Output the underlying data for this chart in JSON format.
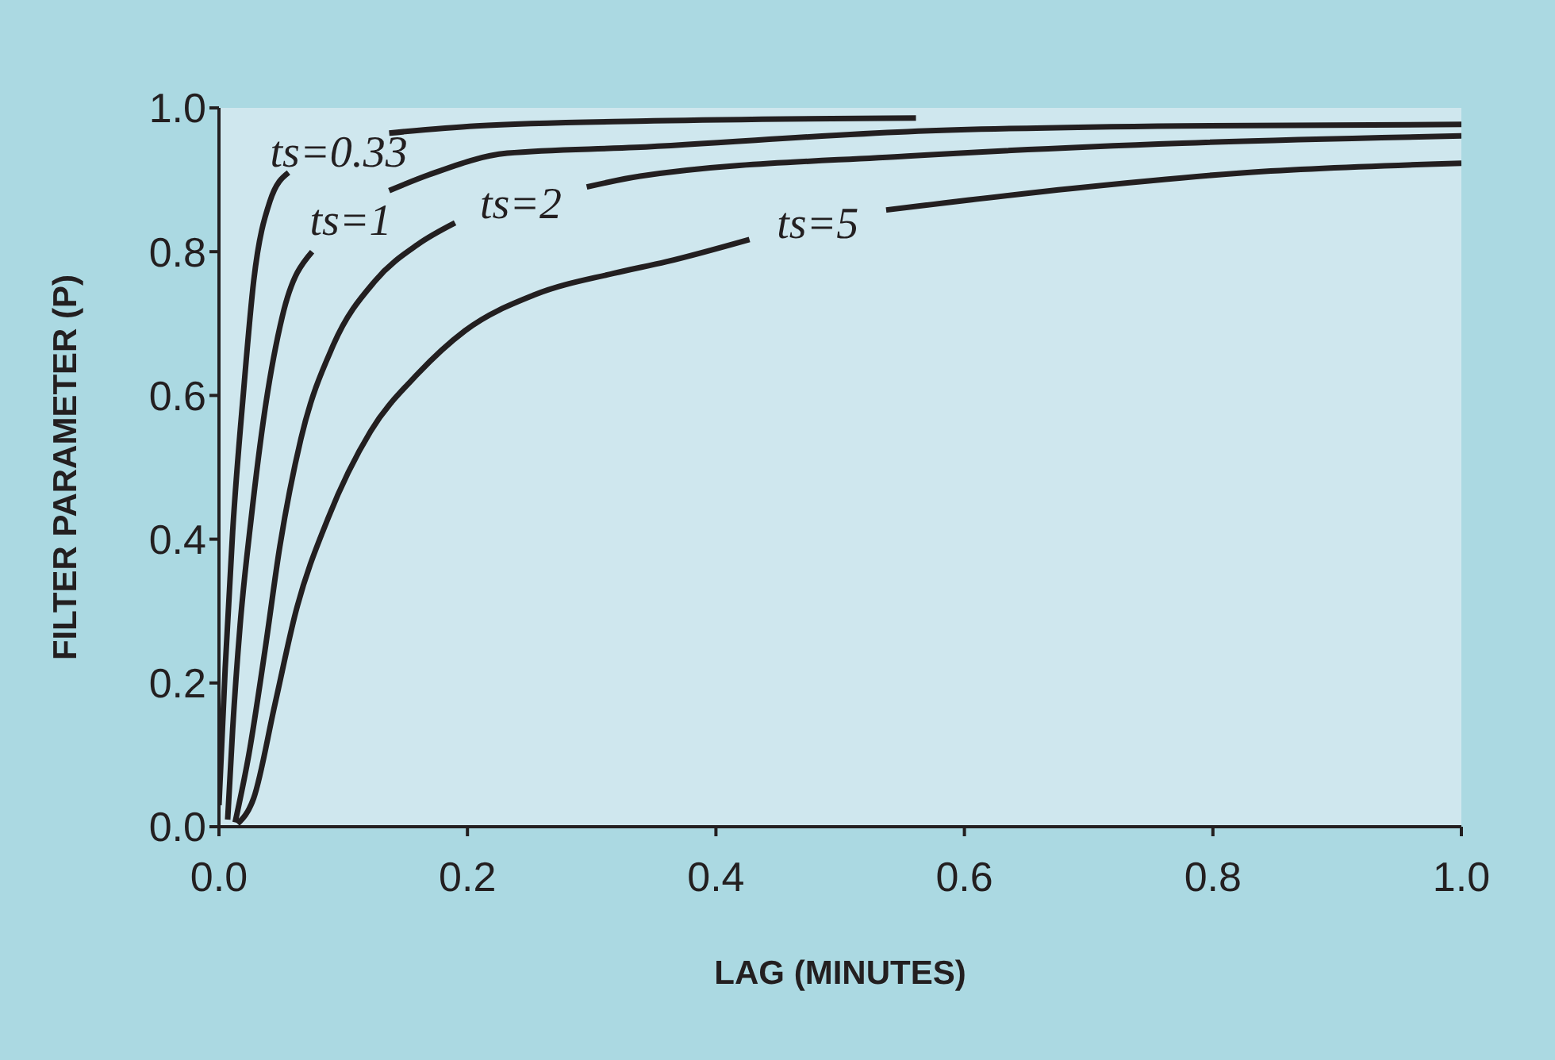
{
  "chart_data": {
    "type": "line",
    "xlabel": "LAG (MINUTES)",
    "ylabel": "FILTER PARAMETER (P)",
    "xlim": [
      0,
      1
    ],
    "ylim": [
      0,
      1
    ],
    "xticks": [
      {
        "value": 0,
        "label": "0.0"
      },
      0.2,
      0.4,
      0.6,
      0.8,
      {
        "value": 1,
        "label": "1.0"
      }
    ],
    "yticks": [
      {
        "value": 0,
        "label": "0.0"
      },
      0.2,
      0.4,
      0.6,
      0.8,
      {
        "value": 1,
        "label": "1.0"
      }
    ],
    "grid": false,
    "marker": "none",
    "line_style": "solid",
    "series": [
      {
        "name": "ts=0.33",
        "color": "#231f20",
        "x": [
          0,
          0.005,
          0.011,
          0.02,
          0.028,
          0.041,
          0.056,
          0.09,
          0.137,
          0.207,
          0.35,
          0.561
        ],
        "values": [
          0.03,
          0.22,
          0.41,
          0.61,
          0.76,
          0.87,
          0.91,
          null,
          0.965,
          0.975,
          0.982,
          0.986
        ]
      },
      {
        "name": "ts=1",
        "color": "#231f20",
        "x": [
          0.007,
          0.011,
          0.017,
          0.026,
          0.037,
          0.051,
          0.075,
          0.1,
          0.137,
          0.169,
          0.232,
          0.335,
          0.554,
          0.775,
          1
        ],
        "values": [
          0.01,
          0.135,
          0.28,
          0.43,
          0.58,
          0.71,
          0.8,
          null,
          0.885,
          0.907,
          0.937,
          0.945,
          0.967,
          0.975,
          0.977
        ]
      },
      {
        "name": "ts=2",
        "color": "#231f20",
        "x": [
          0.013,
          0.024,
          0.037,
          0.049,
          0.066,
          0.092,
          0.126,
          0.16,
          0.19,
          0.24,
          0.296,
          0.339,
          0.554,
          0.775,
          1
        ],
        "values": [
          0.006,
          0.1,
          0.245,
          0.39,
          0.54,
          0.67,
          0.76,
          0.81,
          0.84,
          null,
          0.89,
          0.905,
          0.933,
          0.951,
          0.961
        ]
      },
      {
        "name": "ts=5",
        "color": "#231f20",
        "x": [
          0.015,
          0.028,
          0.045,
          0.062,
          0.088,
          0.122,
          0.16,
          0.198,
          0.254,
          0.318,
          0.36,
          0.427,
          0.48,
          0.537,
          0.687,
          0.819,
          1
        ],
        "values": [
          0.004,
          0.04,
          0.17,
          0.3,
          0.43,
          0.55,
          0.63,
          0.69,
          0.74,
          0.77,
          0.786,
          0.817,
          null,
          0.858,
          0.888,
          0.909,
          0.923
        ]
      }
    ]
  }
}
